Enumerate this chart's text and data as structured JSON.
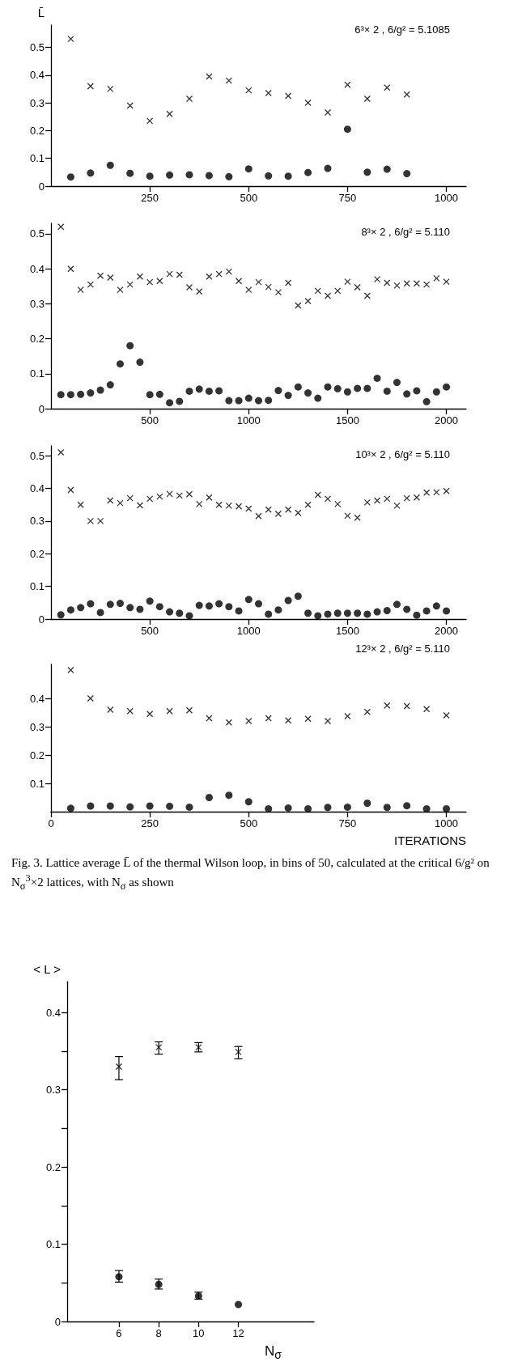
{
  "chart_data": [
    {
      "type": "scatter",
      "ylabel": "L̄",
      "annotations": [
        "6³× 2 , 6/g² = 5.1085"
      ],
      "x": [
        50,
        100,
        150,
        200,
        250,
        300,
        350,
        400,
        450,
        500,
        550,
        600,
        650,
        700,
        750,
        800,
        850,
        900
      ],
      "series": [
        {
          "marker": "cross",
          "color": "#000000",
          "values": [
            0.53,
            0.36,
            0.35,
            0.29,
            0.235,
            0.26,
            0.315,
            0.395,
            0.38,
            0.345,
            0.335,
            0.325,
            0.3,
            0.265,
            0.365,
            0.315,
            0.355,
            0.33
          ]
        },
        {
          "marker": "circle",
          "color": "#000000",
          "values": [
            0.033,
            0.047,
            0.075,
            0.046,
            0.036,
            0.04,
            0.041,
            0.038,
            0.034,
            0.062,
            0.037,
            0.036,
            0.049,
            0.064,
            0.205,
            0.05,
            0.061,
            0.045
          ]
        }
      ],
      "xlim": [
        0,
        1050
      ],
      "xticks": [
        250,
        500,
        750,
        1000
      ],
      "ylim": [
        0,
        0.58
      ],
      "yticks": [
        0,
        0.1,
        0.2,
        0.3,
        0.4,
        0.5
      ]
    },
    {
      "type": "scatter",
      "annotations": [
        "8³× 2 , 6/g² = 5.110"
      ],
      "x": [
        50,
        100,
        150,
        200,
        250,
        300,
        350,
        400,
        450,
        500,
        550,
        600,
        650,
        700,
        750,
        800,
        850,
        900,
        950,
        1000,
        1050,
        1100,
        1150,
        1200,
        1250,
        1300,
        1350,
        1400,
        1450,
        1500,
        1550,
        1600,
        1650,
        1700,
        1750,
        1800,
        1850,
        1900,
        1950,
        2000
      ],
      "series": [
        {
          "marker": "cross",
          "color": "#000000",
          "values": [
            0.52,
            0.4,
            0.34,
            0.355,
            0.38,
            0.375,
            0.34,
            0.355,
            0.378,
            0.362,
            0.365,
            0.385,
            0.383,
            0.347,
            0.335,
            0.378,
            0.385,
            0.392,
            0.365,
            0.34,
            0.362,
            0.348,
            0.333,
            0.36,
            0.295,
            0.308,
            0.337,
            0.323,
            0.337,
            0.363,
            0.347,
            0.323,
            0.37,
            0.36,
            0.352,
            0.358,
            0.358,
            0.355,
            0.373,
            0.363
          ]
        },
        {
          "marker": "circle",
          "color": "#000000",
          "values": [
            0.04,
            0.04,
            0.041,
            0.045,
            0.053,
            0.068,
            0.128,
            0.18,
            0.133,
            0.04,
            0.041,
            0.017,
            0.021,
            0.05,
            0.056,
            0.05,
            0.051,
            0.023,
            0.023,
            0.03,
            0.023,
            0.024,
            0.052,
            0.038,
            0.062,
            0.045,
            0.03,
            0.062,
            0.057,
            0.048,
            0.058,
            0.058,
            0.087,
            0.05,
            0.075,
            0.042,
            0.051,
            0.02,
            0.048,
            0.062
          ]
        }
      ],
      "xlim": [
        0,
        2100
      ],
      "xticks": [
        500,
        1000,
        1500,
        2000
      ],
      "ylim": [
        0,
        0.53
      ],
      "yticks": [
        0,
        0.1,
        0.2,
        0.3,
        0.4,
        0.5
      ]
    },
    {
      "type": "scatter",
      "annotations": [
        "10³× 2 , 6/g² = 5.110"
      ],
      "x": [
        50,
        100,
        150,
        200,
        250,
        300,
        350,
        400,
        450,
        500,
        550,
        600,
        650,
        700,
        750,
        800,
        850,
        900,
        950,
        1000,
        1050,
        1100,
        1150,
        1200,
        1250,
        1300,
        1350,
        1400,
        1450,
        1500,
        1550,
        1600,
        1650,
        1700,
        1750,
        1800,
        1850,
        1900,
        1950,
        2000
      ],
      "series": [
        {
          "marker": "cross",
          "color": "#000000",
          "values": [
            0.51,
            0.395,
            0.35,
            0.3,
            0.3,
            0.363,
            0.355,
            0.37,
            0.348,
            0.368,
            0.375,
            0.383,
            0.378,
            0.382,
            0.352,
            0.372,
            0.35,
            0.347,
            0.345,
            0.338,
            0.315,
            0.335,
            0.322,
            0.335,
            0.325,
            0.35,
            0.38,
            0.368,
            0.352,
            0.316,
            0.31,
            0.357,
            0.363,
            0.368,
            0.347,
            0.37,
            0.372,
            0.387,
            0.388,
            0.392
          ]
        },
        {
          "marker": "circle",
          "color": "#000000",
          "values": [
            0.013,
            0.028,
            0.035,
            0.047,
            0.02,
            0.045,
            0.048,
            0.035,
            0.03,
            0.055,
            0.038,
            0.022,
            0.018,
            0.01,
            0.042,
            0.04,
            0.047,
            0.038,
            0.025,
            0.06,
            0.047,
            0.015,
            0.028,
            0.057,
            0.07,
            0.018,
            0.01,
            0.015,
            0.018,
            0.018,
            0.018,
            0.015,
            0.022,
            0.026,
            0.045,
            0.03,
            0.012,
            0.025,
            0.04,
            0.025
          ]
        }
      ],
      "xlim": [
        0,
        2100
      ],
      "xticks": [
        500,
        1000,
        1500,
        2000
      ],
      "ylim": [
        0,
        0.53
      ],
      "yticks": [
        0,
        0.1,
        0.2,
        0.3,
        0.4,
        0.5
      ]
    },
    {
      "type": "scatter",
      "xlabel": "ITERATIONS",
      "annotations": [
        "12³× 2 , 6/g² = 5.110",
        "Fig. 3. Lattice average L̄ of the thermal Wilson loop, in bins of 50, calculated at the critical 6/g² on N$_{σ}$$^{3}$×2 lattices, with N$_{σ}$ as shown"
      ],
      "x": [
        50,
        100,
        150,
        200,
        250,
        300,
        350,
        400,
        450,
        500,
        550,
        600,
        650,
        700,
        750,
        800,
        850,
        900,
        950,
        1000
      ],
      "series": [
        {
          "marker": "cross",
          "color": "#000000",
          "values": [
            0.5,
            0.4,
            0.36,
            0.355,
            0.345,
            0.355,
            0.358,
            0.33,
            0.315,
            0.32,
            0.33,
            0.322,
            0.328,
            0.32,
            0.337,
            0.352,
            0.375,
            0.373,
            0.362,
            0.34
          ]
        },
        {
          "marker": "circle",
          "color": "#000000",
          "values": [
            0.012,
            0.02,
            0.02,
            0.017,
            0.02,
            0.019,
            0.016,
            0.05,
            0.058,
            0.035,
            0.01,
            0.013,
            0.01,
            0.015,
            0.016,
            0.03,
            0.015,
            0.021,
            0.01,
            0.01
          ]
        }
      ],
      "xlim": [
        0,
        1050
      ],
      "xticks": [
        0,
        250,
        500,
        750,
        1000
      ],
      "ylim": [
        0,
        0.52
      ],
      "yticks": [
        0.1,
        0.2,
        0.3,
        0.4
      ]
    },
    {
      "type": "scatter",
      "ylabel": "< L >",
      "xlabel": "N$_{σ}$",
      "x": [
        6,
        8,
        10,
        12
      ],
      "series": [
        {
          "marker": "cross",
          "color": "#000000",
          "values": [
            0.33,
            0.355,
            0.355,
            0.349
          ],
          "errors": [
            [
              0.313,
              0.343
            ],
            [
              0.346,
              0.362
            ],
            [
              0.349,
              0.361
            ],
            [
              0.34,
              0.356
            ]
          ]
        },
        {
          "marker": "circle",
          "color": "#000000",
          "values": [
            0.058,
            0.048,
            0.033,
            0.022
          ],
          "errors": [
            [
              0.051,
              0.066
            ],
            [
              0.042,
              0.055
            ],
            [
              0.029,
              0.038
            ],
            null
          ]
        }
      ],
      "xlim": [
        3.4,
        15.8
      ],
      "xticks": [
        6,
        8,
        10,
        12
      ],
      "ylim": [
        0,
        0.44
      ],
      "yticks": [
        0,
        {
          "value": 0.05,
          "label": null
        },
        0.1,
        {
          "value": 0.15,
          "label": null
        },
        0.2,
        {
          "value": 0.25,
          "label": null
        },
        0.3,
        {
          "value": 0.35,
          "label": null
        },
        0.4
      ]
    }
  ]
}
